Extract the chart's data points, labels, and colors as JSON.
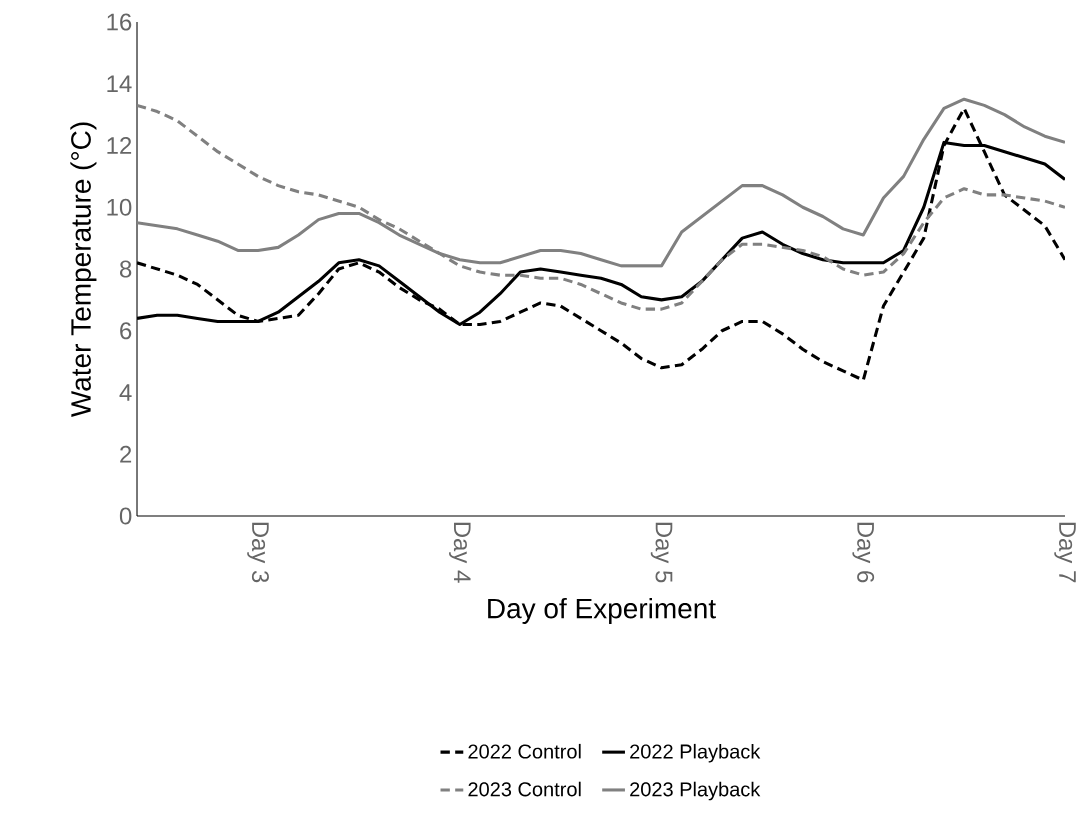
{
  "chart_data": {
    "type": "line",
    "xlabel": "Day of Experiment",
    "ylabel": "Water Temperature (°C)",
    "categories": [
      null,
      null,
      null,
      null,
      null,
      null,
      "Day 3",
      null,
      null,
      null,
      null,
      null,
      null,
      null,
      null,
      null,
      "Day 4",
      null,
      null,
      null,
      null,
      null,
      null,
      null,
      null,
      null,
      "Day 5",
      null,
      null,
      null,
      null,
      null,
      null,
      null,
      null,
      null,
      "Day 6",
      null,
      null,
      null,
      null,
      null,
      null,
      null,
      null,
      null,
      "Day 7"
    ],
    "ylim": [
      0,
      16
    ],
    "yticks": [
      0,
      2,
      4,
      6,
      8,
      10,
      12,
      14,
      16
    ],
    "grid": false,
    "legend": "bottom",
    "marker": "none",
    "series": [
      {
        "name": "2022 Control",
        "color": "#000000",
        "line_style": "dashed",
        "values": [
          8.2,
          8.0,
          7.8,
          7.5,
          7.0,
          6.5,
          6.3,
          6.4,
          6.5,
          7.2,
          8.0,
          8.2,
          7.9,
          7.4,
          7.0,
          6.7,
          6.2,
          6.2,
          6.3,
          6.6,
          6.9,
          6.8,
          6.4,
          6.0,
          5.6,
          5.1,
          4.8,
          4.9,
          5.4,
          6.0,
          6.3,
          6.3,
          5.9,
          5.4,
          5.0,
          4.7,
          4.4,
          6.8,
          7.9,
          9.0,
          12.0,
          13.2,
          11.8,
          10.4,
          9.9,
          9.4,
          8.3
        ]
      },
      {
        "name": "2022 Playback",
        "color": "#000000",
        "line_style": "solid",
        "values": [
          6.4,
          6.5,
          6.5,
          6.4,
          6.3,
          6.3,
          6.3,
          6.6,
          7.1,
          7.6,
          8.2,
          8.3,
          8.1,
          7.6,
          7.1,
          6.6,
          6.2,
          6.6,
          7.2,
          7.9,
          8.0,
          7.9,
          7.8,
          7.7,
          7.5,
          7.1,
          7.0,
          7.1,
          7.6,
          8.3,
          9.0,
          9.2,
          8.8,
          8.5,
          8.3,
          8.2,
          8.2,
          8.2,
          8.6,
          10.0,
          12.1,
          12.0,
          12.0,
          11.8,
          11.6,
          11.4,
          10.9
        ]
      },
      {
        "name": "2023 Control",
        "color": "#808080",
        "line_style": "dashed",
        "values": [
          13.3,
          13.1,
          12.8,
          12.3,
          11.8,
          11.4,
          11.0,
          10.7,
          10.5,
          10.4,
          10.2,
          10.0,
          9.6,
          9.3,
          8.9,
          8.5,
          8.1,
          7.9,
          7.8,
          7.8,
          7.7,
          7.7,
          7.5,
          7.2,
          6.9,
          6.7,
          6.7,
          6.9,
          7.6,
          8.3,
          8.8,
          8.8,
          8.7,
          8.6,
          8.4,
          8.0,
          7.8,
          7.9,
          8.5,
          9.5,
          10.3,
          10.6,
          10.4,
          10.4,
          10.3,
          10.2,
          10.0
        ]
      },
      {
        "name": "2023 Playback",
        "color": "#808080",
        "line_style": "solid",
        "values": [
          9.5,
          9.4,
          9.3,
          9.1,
          8.9,
          8.6,
          8.6,
          8.7,
          9.1,
          9.6,
          9.8,
          9.8,
          9.5,
          9.1,
          8.8,
          8.5,
          8.3,
          8.2,
          8.2,
          8.4,
          8.6,
          8.6,
          8.5,
          8.3,
          8.1,
          8.1,
          8.1,
          9.2,
          9.7,
          10.2,
          10.7,
          10.7,
          10.4,
          10.0,
          9.7,
          9.3,
          9.1,
          10.3,
          11.0,
          12.2,
          13.2,
          13.5,
          13.3,
          13.0,
          12.6,
          12.3,
          12.1
        ]
      }
    ]
  }
}
